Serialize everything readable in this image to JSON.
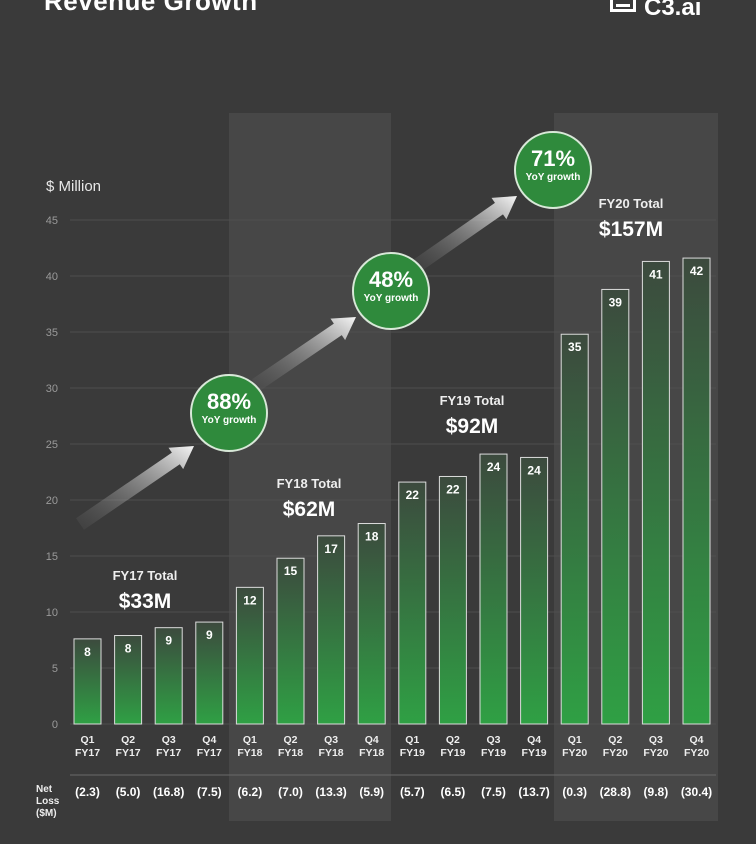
{
  "header": {
    "title": "Revenue Growth",
    "logo_text": "C3.ai"
  },
  "chart_data": {
    "type": "bar",
    "ylabel": "$ Million",
    "ylim": [
      0,
      45
    ],
    "yticks": [
      0,
      5,
      10,
      15,
      20,
      25,
      30,
      35,
      40,
      45
    ],
    "grid": true,
    "categories": [
      "Q1 FY17",
      "Q2 FY17",
      "Q3 FY17",
      "Q4 FY17",
      "Q1 FY18",
      "Q2 FY18",
      "Q3 FY18",
      "Q4 FY18",
      "Q1 FY19",
      "Q2 FY19",
      "Q3 FY19",
      "Q4 FY19",
      "Q1 FY20",
      "Q2 FY20",
      "Q3 FY20",
      "Q4 FY20"
    ],
    "category_lines": [
      [
        "Q1",
        "FY17"
      ],
      [
        "Q2",
        "FY17"
      ],
      [
        "Q3",
        "FY17"
      ],
      [
        "Q4",
        "FY17"
      ],
      [
        "Q1",
        "FY18"
      ],
      [
        "Q2",
        "FY18"
      ],
      [
        "Q3",
        "FY18"
      ],
      [
        "Q4",
        "FY18"
      ],
      [
        "Q1",
        "FY19"
      ],
      [
        "Q2",
        "FY19"
      ],
      [
        "Q3",
        "FY19"
      ],
      [
        "Q4",
        "FY19"
      ],
      [
        "Q1",
        "FY20"
      ],
      [
        "Q2",
        "FY20"
      ],
      [
        "Q3",
        "FY20"
      ],
      [
        "Q4",
        "FY20"
      ]
    ],
    "values": [
      7.6,
      7.9,
      8.6,
      9.1,
      12.2,
      14.8,
      16.8,
      17.9,
      21.6,
      22.1,
      24.1,
      23.8,
      34.8,
      38.8,
      41.3,
      41.6
    ],
    "labels": [
      "8",
      "8",
      "9",
      "9",
      "12",
      "15",
      "17",
      "18",
      "22",
      "22",
      "24",
      "24",
      "35",
      "39",
      "41",
      "42"
    ],
    "totals": [
      {
        "label": "FY17 Total",
        "value": "$33M"
      },
      {
        "label": "FY18 Total",
        "value": "$62M"
      },
      {
        "label": "FY19 Total",
        "value": "$92M"
      },
      {
        "label": "FY20 Total",
        "value": "$157M"
      }
    ],
    "growth": [
      {
        "pct": "88%",
        "sub": "YoY growth"
      },
      {
        "pct": "48%",
        "sub": "YoY growth"
      },
      {
        "pct": "71%",
        "sub": "YoY growth"
      }
    ],
    "net_loss": {
      "label": "Net Loss ($M)",
      "values": [
        "(2.3)",
        "(5.0)",
        "(16.8)",
        "(7.5)",
        "(6.2)",
        "(7.0)",
        "(13.3)",
        "(5.9)",
        "(5.7)",
        "(6.5)",
        "(7.5)",
        "(13.7)",
        "(0.3)",
        "(28.8)",
        "(9.8)",
        "(30.4)"
      ]
    },
    "colors": {
      "background": "#3a3a3a",
      "shaded_band": "#474747",
      "bar_top": "#3c4a3e",
      "bar_bottom": "#2fa044",
      "badge": "#2f8a3c"
    }
  }
}
